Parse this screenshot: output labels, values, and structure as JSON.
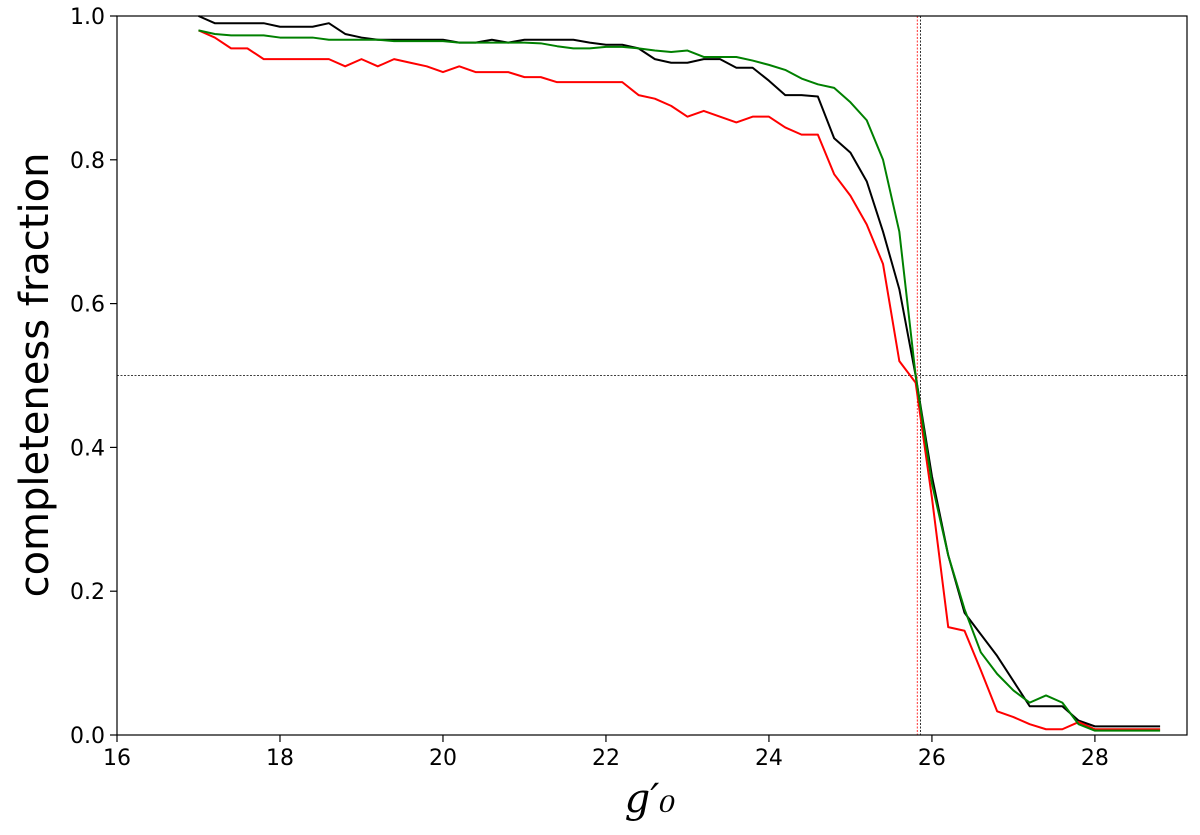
{
  "chart_data": {
    "type": "line",
    "y_label": "completeness fraction",
    "x_label": "g′₀",
    "xlim": [
      16,
      29.13
    ],
    "ylim": [
      0,
      1
    ],
    "xticks": [
      16,
      18,
      20,
      22,
      24,
      26,
      28
    ],
    "yticks": [
      {
        "value": 0,
        "label": "0.0"
      },
      0.2,
      0.4,
      0.6,
      0.8,
      {
        "value": 1,
        "label": "1.0"
      }
    ],
    "x": [
      17,
      17.2,
      17.4,
      17.6,
      17.8,
      18,
      18.2,
      18.4,
      18.6,
      18.8,
      19,
      19.2,
      19.4,
      19.6,
      19.8,
      20,
      20.2,
      20.4,
      20.6,
      20.8,
      21,
      21.2,
      21.4,
      21.6,
      21.8,
      22,
      22.2,
      22.4,
      22.6,
      22.8,
      23,
      23.2,
      23.4,
      23.6,
      23.8,
      24,
      24.2,
      24.4,
      24.6,
      24.8,
      25,
      25.2,
      25.4,
      25.6,
      25.8,
      26,
      26.2,
      26.4,
      26.6,
      26.8,
      27,
      27.2,
      27.4,
      27.6,
      27.8,
      28,
      28.2,
      28.4,
      28.6,
      28.8
    ],
    "series": [
      {
        "color": "#000000",
        "values": [
          1.0,
          0.99,
          0.99,
          0.99,
          0.99,
          0.985,
          0.985,
          0.985,
          0.99,
          0.975,
          0.97,
          0.967,
          0.967,
          0.967,
          0.967,
          0.967,
          0.963,
          0.963,
          0.967,
          0.963,
          0.967,
          0.967,
          0.967,
          0.967,
          0.963,
          0.96,
          0.96,
          0.955,
          0.94,
          0.935,
          0.935,
          0.94,
          0.94,
          0.928,
          0.928,
          0.91,
          0.89,
          0.89,
          0.888,
          0.83,
          0.81,
          0.77,
          0.7,
          0.62,
          0.5,
          0.36,
          0.25,
          0.17,
          0.14,
          0.11,
          0.075,
          0.04,
          0.04,
          0.04,
          0.02,
          0.012,
          0.012,
          0.012,
          0.012,
          0.012
        ]
      },
      {
        "color": "#ff0000",
        "values": [
          0.98,
          0.97,
          0.955,
          0.955,
          0.94,
          0.94,
          0.94,
          0.94,
          0.94,
          0.93,
          0.94,
          0.93,
          0.94,
          0.935,
          0.93,
          0.922,
          0.93,
          0.922,
          0.922,
          0.922,
          0.915,
          0.915,
          0.908,
          0.908,
          0.908,
          0.908,
          0.908,
          0.89,
          0.885,
          0.875,
          0.86,
          0.868,
          0.86,
          0.852,
          0.86,
          0.86,
          0.845,
          0.835,
          0.835,
          0.78,
          0.75,
          0.71,
          0.655,
          0.52,
          0.49,
          0.33,
          0.15,
          0.145,
          0.09,
          0.033,
          0.025,
          0.015,
          0.008,
          0.008,
          0.018,
          0.008,
          0.008,
          0.008,
          0.008,
          0.008
        ]
      },
      {
        "color": "#008000",
        "values": [
          0.98,
          0.975,
          0.973,
          0.973,
          0.973,
          0.97,
          0.97,
          0.97,
          0.967,
          0.967,
          0.967,
          0.967,
          0.965,
          0.965,
          0.965,
          0.965,
          0.963,
          0.963,
          0.963,
          0.963,
          0.963,
          0.962,
          0.958,
          0.955,
          0.955,
          0.957,
          0.957,
          0.955,
          0.952,
          0.95,
          0.952,
          0.943,
          0.943,
          0.943,
          0.938,
          0.932,
          0.925,
          0.913,
          0.905,
          0.9,
          0.88,
          0.855,
          0.8,
          0.7,
          0.5,
          0.35,
          0.25,
          0.175,
          0.115,
          0.085,
          0.062,
          0.045,
          0.055,
          0.045,
          0.015,
          0.006,
          0.006,
          0.006,
          0.006,
          0.006
        ]
      }
    ],
    "vlines": [
      {
        "value": 25.82,
        "color": "#ff0000"
      },
      {
        "value": 25.86,
        "color": "#000000"
      }
    ],
    "hlines": [
      {
        "value": 0.5,
        "color": "#000000"
      }
    ]
  }
}
